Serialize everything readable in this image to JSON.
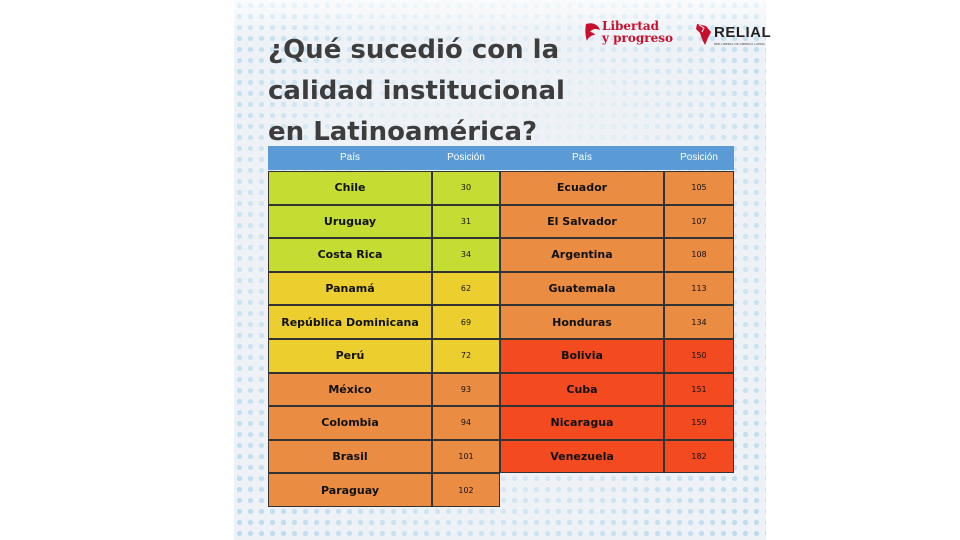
{
  "title": "¿Qué sucedió con la calidad institucional en Latinoamérica?",
  "logos": {
    "libertad": "Libertad\ny progreso",
    "relial": "RELIAL",
    "relial_sub": "RED LIBERAL DE AMÉRICA LATINA"
  },
  "colors": {
    "header": "#5b9bd5",
    "green": "#c5dc32",
    "yellow": "#eccf2e",
    "orange": "#ea8c42",
    "red": "#f34a20"
  },
  "table": {
    "headers": [
      "País",
      "Posición",
      "País",
      "Posición"
    ],
    "left": [
      {
        "country": "Chile",
        "position": "30",
        "color": "green"
      },
      {
        "country": "Uruguay",
        "position": "31",
        "color": "green"
      },
      {
        "country": "Costa Rica",
        "position": "34",
        "color": "green"
      },
      {
        "country": "Panamá",
        "position": "62",
        "color": "yellow"
      },
      {
        "country": "República Dominicana",
        "position": "69",
        "color": "yellow"
      },
      {
        "country": "Perú",
        "position": "72",
        "color": "yellow"
      },
      {
        "country": "México",
        "position": "93",
        "color": "orange"
      },
      {
        "country": "Colombia",
        "position": "94",
        "color": "orange"
      },
      {
        "country": "Brasil",
        "position": "101",
        "color": "orange"
      },
      {
        "country": "Paraguay",
        "position": "102",
        "color": "orange"
      }
    ],
    "right": [
      {
        "country": "Ecuador",
        "position": "105",
        "color": "orange"
      },
      {
        "country": "El Salvador",
        "position": "107",
        "color": "orange"
      },
      {
        "country": "Argentina",
        "position": "108",
        "color": "orange"
      },
      {
        "country": "Guatemala",
        "position": "113",
        "color": "orange"
      },
      {
        "country": "Honduras",
        "position": "134",
        "color": "orange"
      },
      {
        "country": "Bolivia",
        "position": "150",
        "color": "red"
      },
      {
        "country": "Cuba",
        "position": "151",
        "color": "red"
      },
      {
        "country": "Nicaragua",
        "position": "159",
        "color": "red"
      },
      {
        "country": "Venezuela",
        "position": "182",
        "color": "red"
      }
    ]
  }
}
